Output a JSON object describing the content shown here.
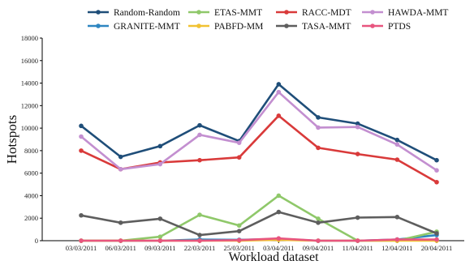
{
  "chart_data": {
    "type": "line",
    "title": "",
    "xlabel": "Workload dataset",
    "ylabel": "Hotspots",
    "categories": [
      "03/03/2011",
      "06/03/2011",
      "09/03/2011",
      "22/03/2011",
      "25/03/2011",
      "03/04/2011",
      "09/04/2011",
      "11/04/2011",
      "12/04/2011",
      "20/04/2011"
    ],
    "ylim": [
      0,
      18000
    ],
    "yticks": [
      0,
      2000,
      4000,
      6000,
      8000,
      10000,
      12000,
      14000,
      16000,
      18000
    ],
    "grid": false,
    "legend_position": "top",
    "series": [
      {
        "name": "Random-Random",
        "color": "#1f4e79",
        "values": [
          10200,
          7450,
          8400,
          10250,
          8850,
          13900,
          10950,
          10400,
          8950,
          7150
        ]
      },
      {
        "name": "GRANITE-MMT",
        "color": "#2e86c1",
        "values": [
          0,
          0,
          0,
          100,
          80,
          150,
          0,
          0,
          100,
          500
        ]
      },
      {
        "name": "ETAS-MMT",
        "color": "#8fc86a",
        "values": [
          0,
          0,
          350,
          2300,
          1350,
          4000,
          1950,
          0,
          0,
          800
        ]
      },
      {
        "name": "PABFD-MM",
        "color": "#f1c232",
        "values": [
          0,
          0,
          0,
          0,
          0,
          80,
          0,
          0,
          0,
          0
        ]
      },
      {
        "name": "RACC-MDT",
        "color": "#d93a3a",
        "values": [
          8000,
          6350,
          6950,
          7150,
          7400,
          11100,
          8250,
          7700,
          7200,
          5200
        ]
      },
      {
        "name": "TASA-MMT",
        "color": "#5e5e5e",
        "values": [
          2250,
          1600,
          1950,
          500,
          850,
          2550,
          1600,
          2050,
          2100,
          650
        ]
      },
      {
        "name": "HAWDA-MMT",
        "color": "#c38fd0",
        "values": [
          9250,
          6350,
          6800,
          9400,
          8700,
          13200,
          10050,
          10100,
          8550,
          6250
        ]
      },
      {
        "name": "PTDS",
        "color": "#e8557f",
        "values": [
          0,
          0,
          0,
          0,
          50,
          200,
          0,
          0,
          100,
          100
        ]
      }
    ]
  }
}
